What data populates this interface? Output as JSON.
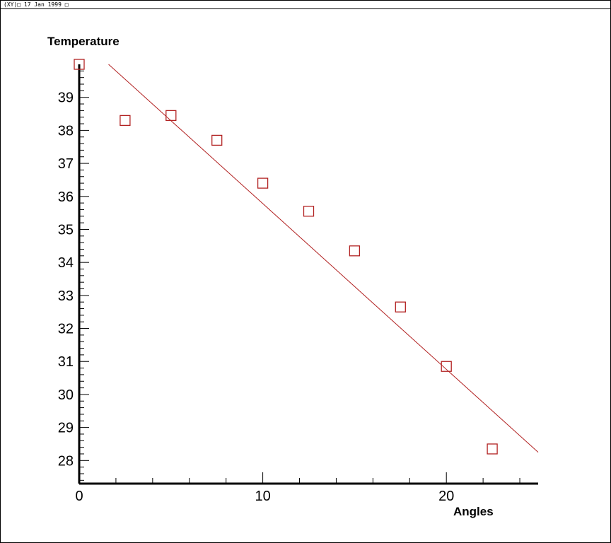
{
  "window": {
    "header_text": "(XY)□  17 Jan 1999 □"
  },
  "chart_data": {
    "type": "scatter",
    "title": "",
    "xlabel": "Angles",
    "ylabel": "Temperature",
    "xlim": [
      0,
      25
    ],
    "ylim": [
      27.3,
      40.0
    ],
    "x_major_ticks": [
      0,
      10,
      20
    ],
    "x_minor_step": 2,
    "y_major_ticks": [
      28,
      29,
      30,
      31,
      32,
      33,
      34,
      35,
      36,
      37,
      38,
      39
    ],
    "y_minor_step": 0.2,
    "grid": false,
    "series": [
      {
        "marker": "square",
        "color": "#b22222",
        "x": [
          0,
          2.5,
          5,
          7.5,
          10,
          12.5,
          15,
          17.5,
          20,
          22.5
        ],
        "y": [
          40.0,
          38.3,
          38.45,
          37.7,
          36.4,
          35.55,
          34.35,
          32.65,
          30.85,
          28.35
        ]
      }
    ],
    "fit_line": {
      "color": "#b22222",
      "x": [
        1.6,
        25
      ],
      "y": [
        40.0,
        28.25
      ]
    }
  }
}
